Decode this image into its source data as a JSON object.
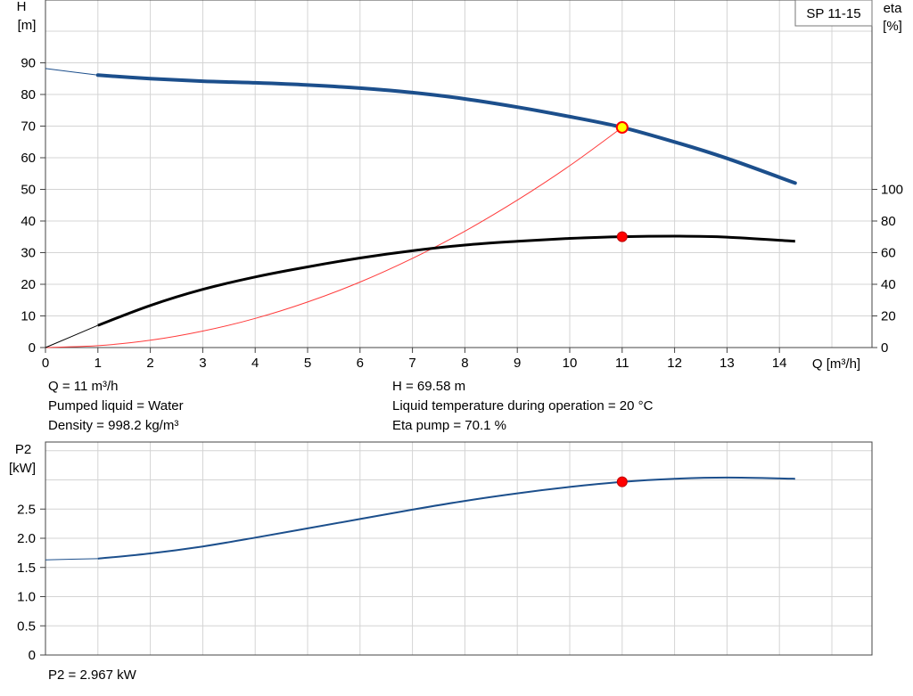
{
  "chart_data": [
    {
      "type": "line",
      "title": "",
      "badge": "SP 11-15",
      "ylabel": "H",
      "yunit": "[m]",
      "y2label": "eta",
      "y2unit": "[%]",
      "xlabel": "Q [m³/h]",
      "xlim": [
        0,
        15
      ],
      "ylim": [
        0,
        100
      ],
      "y2lim": [
        0,
        100
      ],
      "grid": true,
      "x_ticks": [
        "0",
        "1",
        "2",
        "3",
        "4",
        "5",
        "6",
        "7",
        "8",
        "9",
        "10",
        "11",
        "12",
        "13",
        "14"
      ],
      "y_ticks": [
        "0",
        "10",
        "20",
        "30",
        "40",
        "50",
        "60",
        "70",
        "80",
        "90"
      ],
      "y2_ticks": [
        "0",
        "20",
        "40",
        "60",
        "80",
        "100"
      ],
      "series": [
        {
          "key": "head",
          "color": "#1c4f8c",
          "x": [
            0,
            1,
            2,
            3,
            4,
            5,
            6,
            7,
            8,
            9,
            10,
            11,
            12,
            13,
            14.3
          ],
          "y": [
            88.2,
            86.1,
            85.0,
            84.2,
            83.7,
            83.0,
            82.0,
            80.6,
            78.6,
            76.0,
            73.0,
            69.6,
            65.0,
            59.8,
            52.0
          ]
        },
        {
          "key": "eta",
          "color": "#000000",
          "x": [
            0,
            1,
            2,
            3,
            4,
            5,
            6,
            7,
            8,
            9,
            10,
            11,
            12,
            13,
            14.3
          ],
          "y": [
            0,
            14.0,
            26.6,
            36.8,
            44.6,
            51.0,
            56.6,
            61.2,
            64.8,
            67.2,
            69.0,
            70.1,
            70.4,
            69.8,
            67.2
          ]
        },
        {
          "key": "system",
          "color": "#ff3b3b",
          "x": [
            0,
            1,
            2,
            3,
            4,
            5,
            6,
            7,
            8,
            9,
            10,
            11
          ],
          "y": [
            0,
            0.6,
            2.3,
            5.2,
            9.2,
            14.4,
            20.7,
            28.2,
            36.8,
            46.6,
            57.5,
            69.58
          ]
        }
      ],
      "operating_point": {
        "q": 11,
        "h": 69.58,
        "eta": 70.1
      },
      "info": {
        "left": [
          "Q = 11 m³/h",
          "Pumped liquid = Water",
          "Density = 998.2 kg/m³"
        ],
        "right": [
          "H = 69.58 m",
          "Liquid temperature during operation = 20 °C",
          "Eta pump = 70.1 %"
        ]
      }
    },
    {
      "type": "line",
      "title": "",
      "ylabel": "P2",
      "yunit": "[kW]",
      "xlim": [
        0,
        15
      ],
      "ylim": [
        0,
        3.25
      ],
      "grid": true,
      "y_ticks": [
        "0",
        "0.5",
        "1.0",
        "1.5",
        "2.0",
        "2.5"
      ],
      "series": [
        {
          "key": "power",
          "color": "#1c4f8c",
          "x": [
            0,
            1,
            2,
            3,
            4,
            5,
            6,
            7,
            8,
            9,
            10,
            11,
            12,
            13,
            14.3
          ],
          "y": [
            1.63,
            1.65,
            1.74,
            1.86,
            2.01,
            2.17,
            2.33,
            2.49,
            2.64,
            2.77,
            2.88,
            2.967,
            3.02,
            3.04,
            3.02
          ]
        }
      ],
      "operating_point": {
        "q": 11,
        "p2": 2.967
      },
      "info": [
        "P2 = 2.967 kW"
      ]
    }
  ]
}
